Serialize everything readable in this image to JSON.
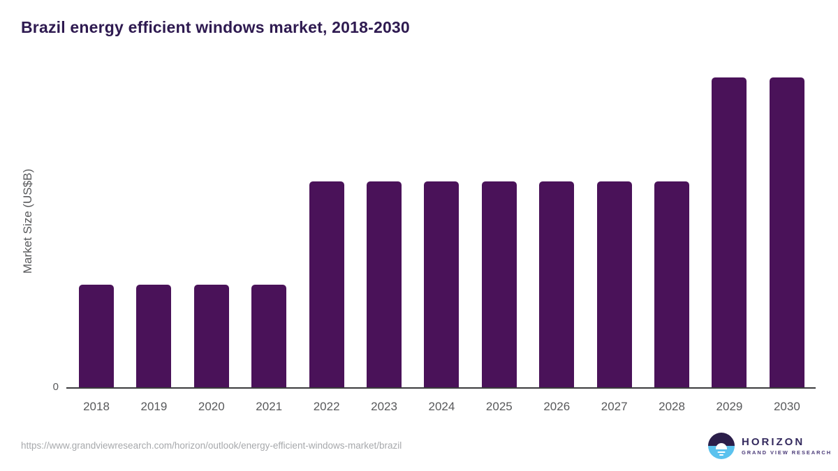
{
  "title": "Brazil energy efficient windows market, 2018-2030",
  "colors": {
    "bar": "#4a1259",
    "title_text": "#2e1a50",
    "axis_text": "#58595b",
    "axis_line": "#3b3b3d",
    "footer_text": "#a7a9ac",
    "logo_dark": "#2b1e4a",
    "logo_blue": "#5bc2ee",
    "logo_text": "#342a5e"
  },
  "chart_data": {
    "type": "bar",
    "title": "Brazil energy efficient windows market, 2018-2030",
    "categories": [
      "2018",
      "2019",
      "2020",
      "2021",
      "2022",
      "2023",
      "2024",
      "2025",
      "2026",
      "2027",
      "2028",
      "2029",
      "2030"
    ],
    "values": [
      1,
      1,
      1,
      1,
      2,
      2,
      2,
      2,
      2,
      2,
      2,
      3,
      3
    ],
    "xlabel": "",
    "ylabel": "Market Size (US$B)",
    "ylim": [
      0,
      3.1
    ],
    "y_tick_labels": [
      "0"
    ],
    "grid": false,
    "legend": null
  },
  "y_axis": {
    "label": "Market Size (US$B)",
    "zero_tick": "0"
  },
  "footer": {
    "source_url": "https://www.grandviewresearch.com/horizon/outlook/energy-efficient-windows-market/brazil",
    "logo": {
      "brand": "HORIZON",
      "sub_brand": "GRAND VIEW RESEARCH",
      "icon": "horizon-sunrise-icon"
    }
  }
}
